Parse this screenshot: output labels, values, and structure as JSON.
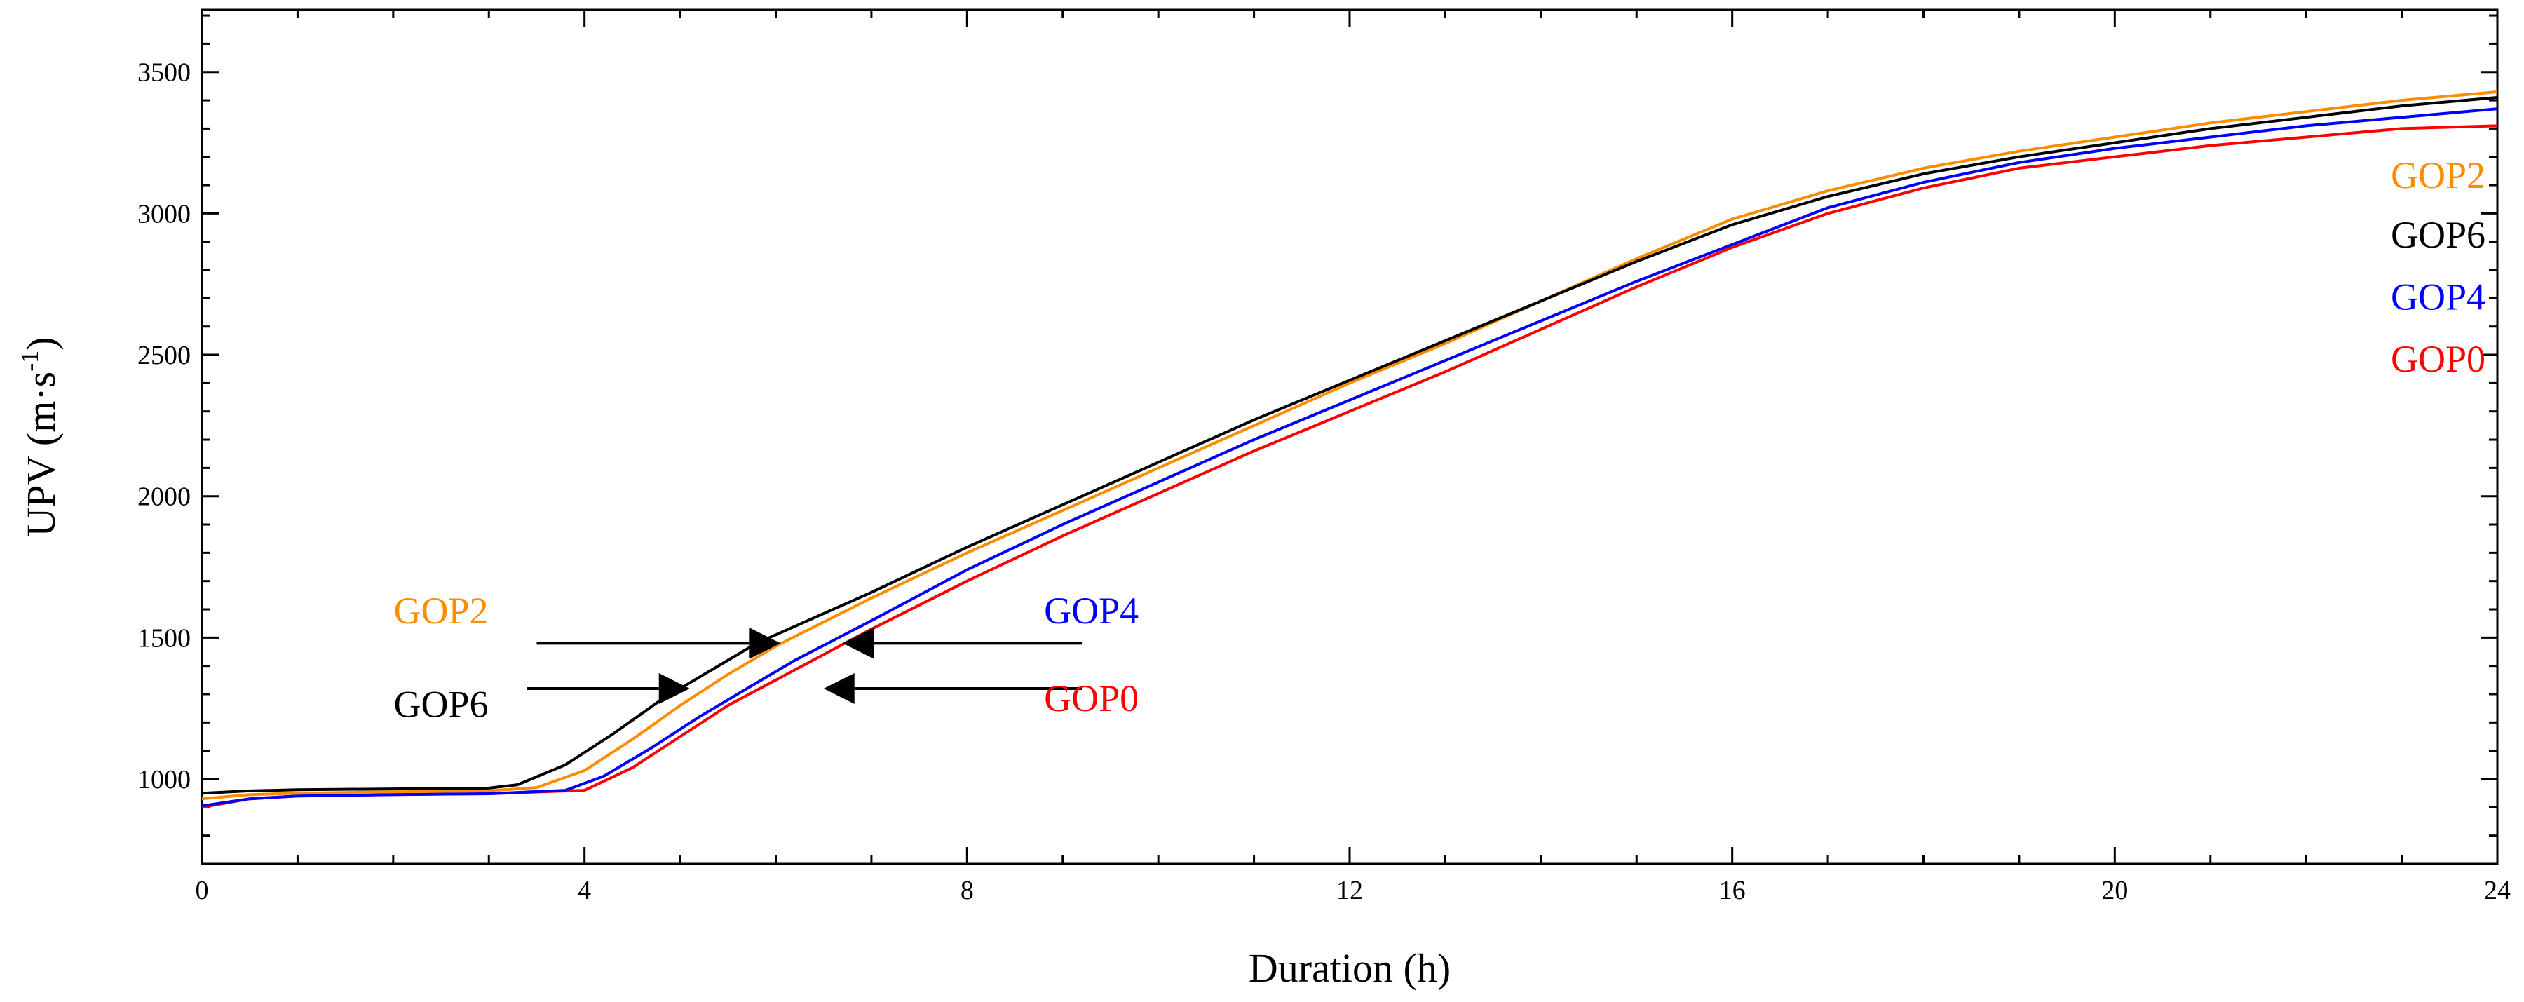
{
  "chart_data": {
    "type": "line",
    "title": "",
    "xlabel": "Duration (h)",
    "ylabel_main": "UPV (m·s",
    "ylabel_sup": "-1",
    "ylabel_close": ")",
    "xlim": [
      0,
      24
    ],
    "ylim": [
      700,
      3720
    ],
    "xticks": [
      0,
      4,
      8,
      12,
      16,
      20,
      24
    ],
    "yticks": [
      1000,
      1500,
      2000,
      2500,
      3000,
      3500
    ],
    "xtick_labels": [
      "0",
      "4",
      "8",
      "12",
      "16",
      "20",
      "24"
    ],
    "ytick_labels": [
      "1000",
      "1500",
      "2000",
      "2500",
      "3000",
      "3500"
    ],
    "grid": false,
    "series": [
      {
        "name": "GOP0",
        "color": "#ff0000",
        "x": [
          0,
          0.5,
          1,
          2,
          3,
          4,
          4.5,
          5,
          5.5,
          6,
          6.5,
          7,
          8,
          9,
          10,
          11,
          12,
          13,
          14,
          15,
          16,
          17,
          18,
          19,
          20,
          21,
          22,
          23,
          24
        ],
        "y": [
          900,
          930,
          940,
          945,
          948,
          960,
          1040,
          1150,
          1260,
          1350,
          1440,
          1530,
          1700,
          1860,
          2010,
          2160,
          2300,
          2440,
          2590,
          2740,
          2880,
          3000,
          3090,
          3160,
          3200,
          3240,
          3270,
          3300,
          3310
        ]
      },
      {
        "name": "GOP4",
        "color": "#0000ff",
        "x": [
          0,
          0.5,
          1,
          2,
          3,
          3.8,
          4.2,
          4.7,
          5.2,
          5.7,
          6.2,
          7,
          8,
          9,
          10,
          11,
          12,
          13,
          14,
          15,
          16,
          17,
          18,
          19,
          20,
          21,
          22,
          23,
          24
        ],
        "y": [
          905,
          930,
          940,
          945,
          948,
          960,
          1010,
          1110,
          1220,
          1320,
          1420,
          1560,
          1740,
          1900,
          2050,
          2200,
          2340,
          2480,
          2620,
          2760,
          2890,
          3020,
          3110,
          3180,
          3230,
          3270,
          3310,
          3340,
          3370
        ]
      },
      {
        "name": "GOP2",
        "color": "#ff8c00",
        "x": [
          0,
          0.5,
          1,
          2,
          3,
          3.5,
          4,
          4.5,
          5,
          5.5,
          6,
          7,
          8,
          9,
          10,
          11,
          12,
          13,
          14,
          15,
          16,
          17,
          18,
          19,
          20,
          21,
          22,
          23,
          24
        ],
        "y": [
          930,
          945,
          950,
          955,
          958,
          970,
          1030,
          1140,
          1260,
          1370,
          1470,
          1640,
          1800,
          1950,
          2100,
          2250,
          2400,
          2540,
          2690,
          2840,
          2980,
          3080,
          3160,
          3220,
          3270,
          3320,
          3360,
          3400,
          3430
        ]
      },
      {
        "name": "GOP6",
        "color": "#000000",
        "x": [
          0,
          0.5,
          1,
          2,
          3,
          3.3,
          3.8,
          4.3,
          4.8,
          5.3,
          5.8,
          7,
          8,
          9,
          10,
          11,
          12,
          13,
          14,
          15,
          16,
          17,
          18,
          19,
          20,
          21,
          22,
          23,
          24
        ],
        "y": [
          950,
          958,
          962,
          965,
          968,
          980,
          1050,
          1160,
          1280,
          1380,
          1480,
          1660,
          1820,
          1970,
          2120,
          2270,
          2410,
          2550,
          2690,
          2830,
          2960,
          3060,
          3140,
          3200,
          3250,
          3300,
          3340,
          3380,
          3410
        ]
      }
    ],
    "right_labels": [
      {
        "text": "GOP2",
        "color": "#ff8c00",
        "y": 3090
      },
      {
        "text": "GOP6",
        "color": "#000000",
        "y": 2880
      },
      {
        "text": "GOP4",
        "color": "#0000ff",
        "y": 2660
      },
      {
        "text": "GOP0",
        "color": "#ff0000",
        "y": 2440
      }
    ],
    "annotations": [
      {
        "text": "GOP2",
        "color": "#ff8c00",
        "label_x": 2.5,
        "label_y": 1550,
        "arrow_from_x": 3.5,
        "arrow_to_x": 6.05,
        "arrow_y": 1480
      },
      {
        "text": "GOP6",
        "color": "#000000",
        "label_x": 2.5,
        "label_y": 1220,
        "arrow_from_x": 3.4,
        "arrow_to_x": 5.1,
        "arrow_y": 1320
      },
      {
        "text": "GOP4",
        "color": "#0000ff",
        "label_x": 9.3,
        "label_y": 1550,
        "arrow_from_x": 9.2,
        "arrow_to_x": 6.7,
        "arrow_y": 1480
      },
      {
        "text": "GOP0",
        "color": "#ff0000",
        "label_x": 9.3,
        "label_y": 1240,
        "arrow_from_x": 9.2,
        "arrow_to_x": 6.5,
        "arrow_y": 1320
      }
    ]
  }
}
